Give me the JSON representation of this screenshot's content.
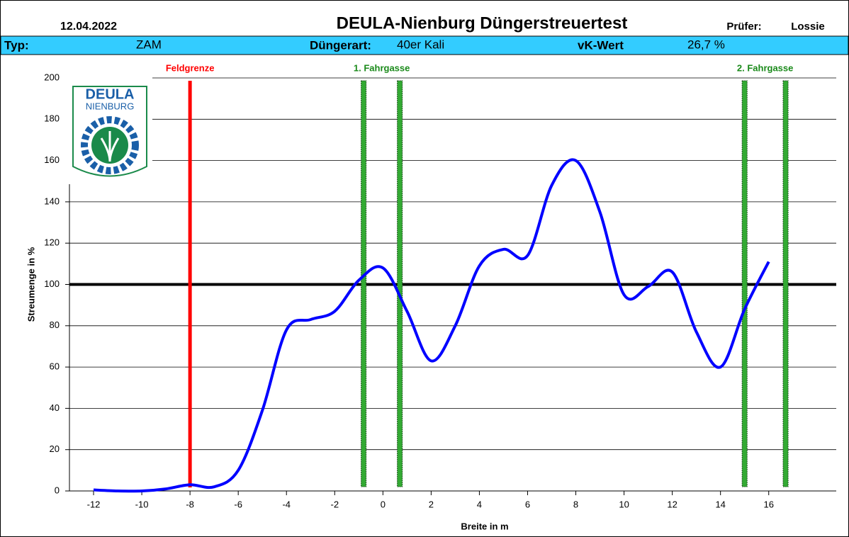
{
  "header": {
    "date": "12.04.2022",
    "title": "DEULA-Nienburg Düngerstreuertest",
    "examiner_label": "Prüfer:",
    "examiner": "Lossie",
    "type_label": "Typ:",
    "type": "ZAM",
    "fertilizer_label": "Düngerart:",
    "fertilizer": "40er Kali",
    "cv_label": "vK-Wert",
    "cv": "26,7 %"
  },
  "logo": {
    "line1": "DEULA",
    "line2": "NIENBURG"
  },
  "chart_data": {
    "type": "line",
    "xlabel": "Breite in m",
    "ylabel": "Streumenge in %",
    "x": [
      -12,
      -11,
      -10,
      -9,
      -8,
      -7,
      -6,
      -5,
      -4,
      -3,
      -2,
      -1,
      0,
      1,
      2,
      3,
      4,
      5,
      6,
      7,
      8,
      9,
      10,
      11,
      12,
      13,
      14,
      15,
      16
    ],
    "values": [
      0.5,
      0,
      0,
      1,
      3,
      2,
      10,
      39,
      78,
      83,
      87,
      102,
      108,
      87,
      63,
      80,
      109,
      117,
      114,
      148,
      160,
      135,
      95,
      99,
      106,
      77,
      60,
      88,
      111
    ],
    "color": "#0000ff",
    "xlim": [
      -13,
      18.8
    ],
    "xticks": [
      -12,
      -10,
      -8,
      -6,
      -4,
      -2,
      0,
      2,
      4,
      6,
      8,
      10,
      12,
      14,
      16
    ],
    "ylim": [
      0,
      200
    ],
    "yticks": [
      0,
      20,
      40,
      60,
      80,
      100,
      120,
      140,
      160,
      180,
      200
    ],
    "grid": true,
    "reference": 100,
    "markers": [
      {
        "label": "Feldgrenze",
        "x": [
          -8
        ],
        "color": "#ff0000"
      },
      {
        "label": "1. Fahrgasse",
        "x": [
          -0.8,
          0.7
        ],
        "color": "#33aa33"
      },
      {
        "label": "2. Fahrgasse",
        "x": [
          15,
          16.7
        ],
        "color": "#33aa33"
      }
    ]
  }
}
